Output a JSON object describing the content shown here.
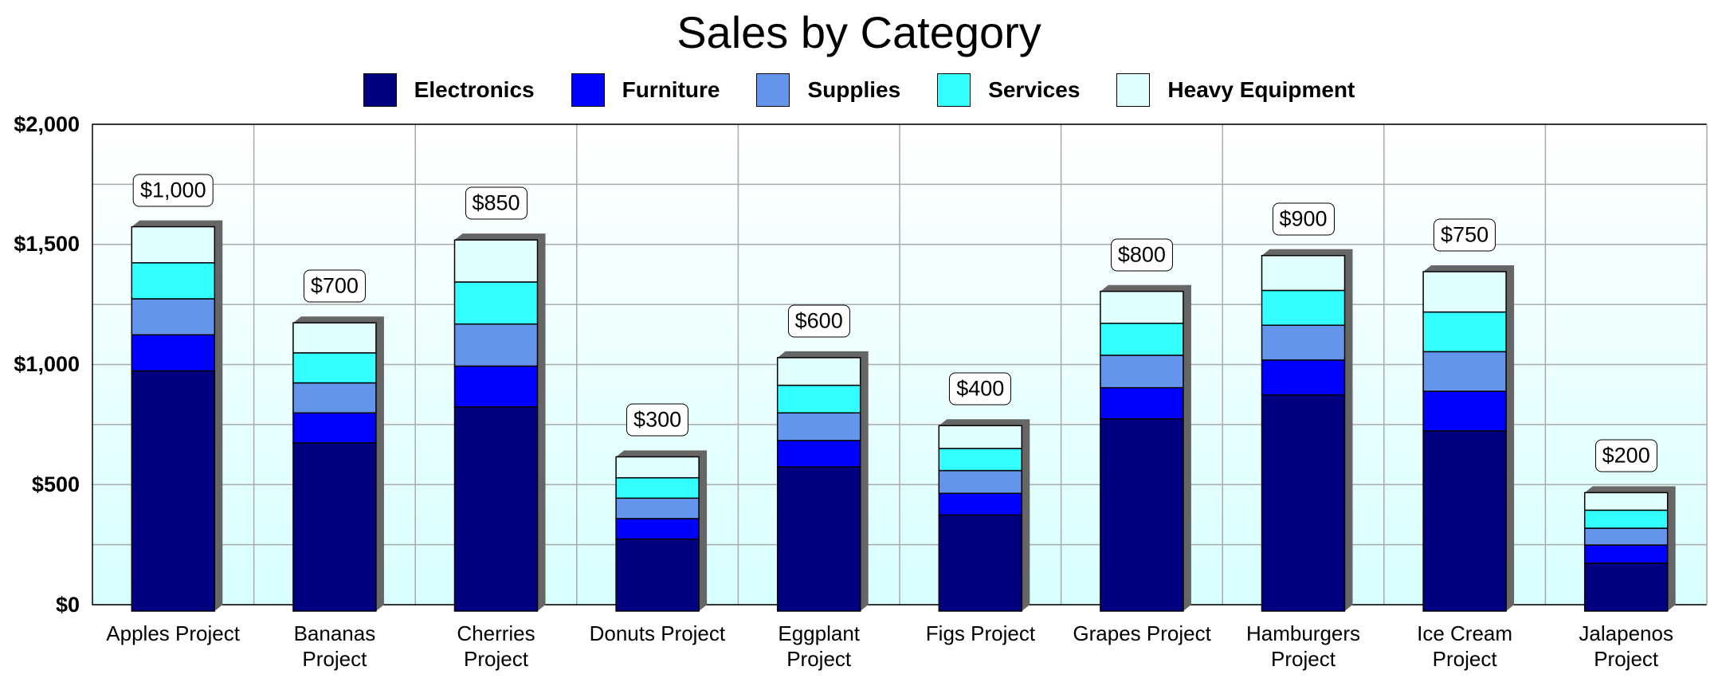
{
  "chart_data": {
    "type": "stacked_bar",
    "title": "Sales by Category",
    "categories": [
      "Apples Project",
      "Bananas Project",
      "Cherries Project",
      "Donuts Project",
      "Eggplant Project",
      "Figs Project",
      "Grapes Project",
      "Hamburgers Project",
      "Ice Cream Project",
      "Jalapenos Project"
    ],
    "series": [
      {
        "name": "Electronics",
        "color": "#000080",
        "values": [
          1000,
          700,
          850,
          300,
          600,
          400,
          800,
          900,
          750,
          200
        ],
        "value_labels": [
          "$1,000",
          "$700",
          "$850",
          "$300",
          "$600",
          "$400",
          "$800",
          "$900",
          "$750",
          "$200"
        ]
      },
      {
        "name": "Furniture",
        "color": "#0000ff",
        "values": [
          150,
          125,
          170,
          85,
          110,
          90,
          130,
          145,
          165,
          75
        ]
      },
      {
        "name": "Supplies",
        "color": "#6495ed",
        "values": [
          150,
          125,
          175,
          85,
          115,
          95,
          135,
          145,
          165,
          70
        ]
      },
      {
        "name": "Services",
        "color": "#33ffff",
        "values": [
          150,
          125,
          175,
          85,
          115,
          92,
          133,
          145,
          165,
          75
        ]
      },
      {
        "name": "Heavy Equipment",
        "color": "#e0ffff",
        "values": [
          150,
          125,
          175,
          87,
          115,
          95,
          133,
          145,
          168,
          73
        ]
      }
    ],
    "ylim": [
      0,
      2000
    ],
    "yticks": [
      {
        "value": 0,
        "label": "$0"
      },
      {
        "value": 500,
        "label": "$500"
      },
      {
        "value": 1000,
        "label": "$1,000"
      },
      {
        "value": 1500,
        "label": "$1,500"
      },
      {
        "value": 2000,
        "label": "$2,000"
      }
    ],
    "minor_yticks": [
      250,
      750,
      1250,
      1750
    ],
    "grid": true,
    "legend": "top"
  }
}
